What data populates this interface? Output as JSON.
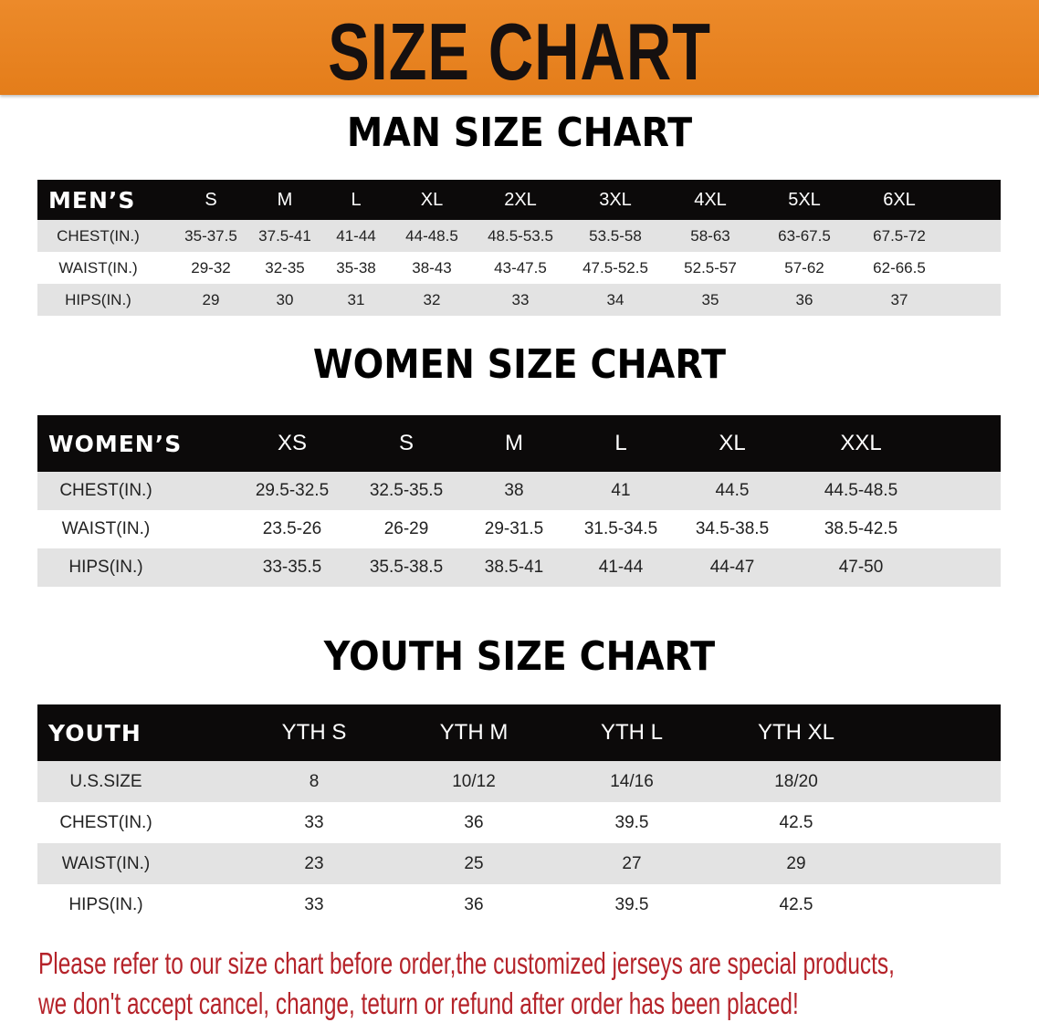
{
  "banner": {
    "title": "SIZE CHART",
    "color": "#e8821f"
  },
  "men": {
    "title": "MAN SIZE CHART",
    "header": [
      "MEN’S",
      "S",
      "M",
      "L",
      "XL",
      "2XL",
      "3XL",
      "4XL",
      "5XL",
      "6XL"
    ],
    "rows": [
      [
        "CHEST(IN.)",
        "35-37.5",
        "37.5-41",
        "41-44",
        "44-48.5",
        "48.5-53.5",
        "53.5-58",
        "58-63",
        "63-67.5",
        "67.5-72"
      ],
      [
        "WAIST(IN.)",
        "29-32",
        "32-35",
        "35-38",
        "38-43",
        "43-47.5",
        "47.5-52.5",
        "52.5-57",
        "57-62",
        "62-66.5"
      ],
      [
        "HIPS(IN.)",
        "29",
        "30",
        "31",
        "32",
        "33",
        "34",
        "35",
        "36",
        "37"
      ]
    ]
  },
  "women": {
    "title": "WOMEN SIZE CHART",
    "header": [
      "WOMEN’S",
      "XS",
      "S",
      "M",
      "L",
      "XL",
      "XXL"
    ],
    "rows": [
      [
        "CHEST(IN.)",
        "29.5-32.5",
        "32.5-35.5",
        "38",
        "41",
        "44.5",
        "44.5-48.5"
      ],
      [
        "WAIST(IN.)",
        "23.5-26",
        "26-29",
        "29-31.5",
        "31.5-34.5",
        "34.5-38.5",
        "38.5-42.5"
      ],
      [
        "HIPS(IN.)",
        "33-35.5",
        "35.5-38.5",
        "38.5-41",
        "41-44",
        "44-47",
        "47-50"
      ]
    ]
  },
  "youth": {
    "title": "YOUTH SIZE CHART",
    "header": [
      "YOUTH",
      "YTH S",
      "YTH M",
      "YTH L",
      "YTH XL"
    ],
    "rows": [
      [
        "U.S.SIZE",
        "8",
        "10/12",
        "14/16",
        "18/20"
      ],
      [
        "CHEST(IN.)",
        "33",
        "36",
        "39.5",
        "42.5"
      ],
      [
        "WAIST(IN.)",
        "23",
        "25",
        "27",
        "29"
      ],
      [
        "HIPS(IN.)",
        "33",
        "36",
        "39.5",
        "42.5"
      ]
    ]
  },
  "notice": {
    "line1": "Please refer to our size chart before order,the customized jerseys are special products,",
    "line2": "we don't accept cancel, change, teturn or refund after order has been placed!",
    "color": "#b5232a"
  }
}
